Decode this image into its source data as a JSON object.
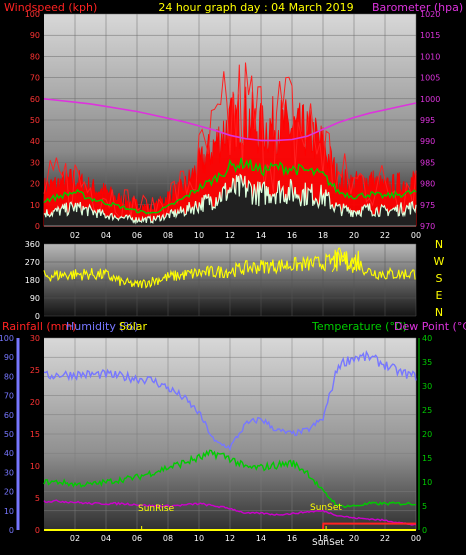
{
  "colors": {
    "background": "#000000",
    "windspeed": "#ff0000",
    "windspeed_avg": "#00cc00",
    "windspeed_low": "#ddffdd",
    "barometer": "#dd33dd",
    "direction": "#ffff00",
    "rainfall": "#ff2222",
    "humidity": "#7777ff",
    "solar": "#ffff00",
    "temperature": "#00cc00",
    "dewpoint": "#cc00cc",
    "sun_event": "#ffff00"
  },
  "chart_data": [
    {
      "type": "line",
      "title": "24 hour graph day : 04 March 2019",
      "x_ticks": [
        "02",
        "04",
        "06",
        "08",
        "10",
        "12",
        "14",
        "16",
        "18",
        "20",
        "22",
        "00"
      ],
      "x": [
        0,
        1,
        2,
        3,
        4,
        5,
        6,
        7,
        8,
        9,
        10,
        11,
        12,
        13,
        14,
        15,
        16,
        17,
        18,
        19,
        20,
        21,
        22,
        23,
        24
      ],
      "left_axis": {
        "label": "Windspeed (kph)",
        "ticks": [
          0,
          10,
          20,
          30,
          40,
          50,
          60,
          70,
          80,
          90,
          100
        ],
        "range": [
          0,
          100
        ]
      },
      "right_axis": {
        "label": "Barometer (hpa)",
        "ticks": [
          970,
          975,
          980,
          985,
          990,
          995,
          1000,
          1005,
          1010,
          1015,
          1020
        ],
        "range": [
          970,
          1020
        ]
      },
      "series": [
        {
          "name": "Windspeed (kph)",
          "axis": "left",
          "kind": "gust",
          "values": [
            18,
            20,
            22,
            18,
            16,
            12,
            10,
            8,
            14,
            18,
            28,
            38,
            48,
            52,
            45,
            48,
            46,
            44,
            38,
            22,
            20,
            22,
            18,
            20,
            22
          ]
        },
        {
          "name": "",
          "axis": "left",
          "kind": "average",
          "values": [
            12,
            14,
            16,
            13,
            11,
            9,
            7,
            6,
            9,
            13,
            18,
            22,
            28,
            30,
            26,
            28,
            27,
            26,
            24,
            16,
            14,
            15,
            14,
            15,
            16
          ]
        },
        {
          "name": "",
          "axis": "left",
          "kind": "low",
          "values": [
            6,
            7,
            9,
            7,
            5,
            4,
            3,
            3,
            5,
            7,
            10,
            13,
            17,
            18,
            15,
            17,
            16,
            15,
            14,
            8,
            7,
            8,
            7,
            8,
            9
          ]
        },
        {
          "name": "Barometer (hpa)",
          "axis": "right",
          "kind": "pressure",
          "values": [
            1000,
            999.6,
            999.2,
            998.8,
            998.2,
            997.6,
            997,
            996.2,
            995.4,
            994.6,
            993.6,
            992.6,
            991.4,
            990.6,
            990.2,
            990.2,
            990.4,
            991.2,
            992.8,
            994.4,
            995.6,
            996.6,
            997.4,
            998.2,
            999
          ]
        }
      ]
    },
    {
      "type": "line",
      "title": "",
      "x": [
        0,
        1,
        2,
        3,
        4,
        5,
        6,
        7,
        8,
        9,
        10,
        11,
        12,
        13,
        14,
        15,
        16,
        17,
        18,
        19,
        20,
        21,
        22,
        23,
        24
      ],
      "left_axis": {
        "label": "",
        "ticks": [
          0,
          90,
          180,
          270,
          360
        ],
        "range": [
          0,
          360
        ]
      },
      "compass_labels": [
        "N",
        "W",
        "S",
        "E",
        "N"
      ],
      "series": [
        {
          "name": "",
          "values": [
            200,
            205,
            208,
            210,
            205,
            170,
            155,
            175,
            195,
            205,
            215,
            220,
            225,
            240,
            248,
            252,
            255,
            258,
            265,
            280,
            275,
            222,
            210,
            210,
            212
          ]
        }
      ]
    },
    {
      "type": "line",
      "title": "",
      "x_ticks": [
        "02",
        "04",
        "06",
        "08",
        "10",
        "12",
        "14",
        "16",
        "18",
        "20",
        "22",
        "00"
      ],
      "x": [
        0,
        1,
        2,
        3,
        4,
        5,
        6,
        7,
        8,
        9,
        10,
        11,
        12,
        13,
        14,
        15,
        16,
        17,
        18,
        19,
        20,
        21,
        22,
        23,
        24
      ],
      "legend_left": [
        "Rainfall (mm)",
        "Humidity (%)",
        "Solar"
      ],
      "legend_right": [
        "Temperature (°C)",
        "Dew Point (°C)"
      ],
      "humidity_axis": {
        "ticks": [
          0,
          10,
          20,
          30,
          40,
          50,
          60,
          70,
          80,
          90,
          100
        ],
        "range": [
          0,
          100
        ]
      },
      "rain_axis": {
        "ticks": [
          0,
          5,
          10,
          15,
          20,
          25,
          30
        ],
        "range": [
          0,
          30
        ]
      },
      "temp_axis": {
        "ticks": [
          0,
          5,
          10,
          15,
          20,
          25,
          30,
          35,
          40
        ],
        "range": [
          0,
          40
        ]
      },
      "annotations": {
        "sunrise": "SunRise",
        "sunset": "SunSet",
        "sunset_bottom": "SunSet"
      },
      "series": [
        {
          "name": "Humidity (%)",
          "axis": "humidity",
          "values": [
            80,
            81,
            81,
            81,
            81,
            80,
            79,
            78,
            74,
            69,
            61,
            46,
            43,
            55,
            58,
            52,
            50,
            52,
            58,
            86,
            90,
            90,
            86,
            82,
            80
          ]
        },
        {
          "name": "Temperature (°C)",
          "axis": "temp",
          "values": [
            10,
            10,
            9.5,
            9.5,
            10,
            10.5,
            11,
            12,
            13,
            14,
            15,
            16,
            15,
            13,
            13,
            13.5,
            14,
            12,
            8,
            5,
            5,
            5.5,
            5.5,
            5.5,
            5.5
          ]
        },
        {
          "name": "Dew Point (°C)",
          "axis": "temp",
          "values": [
            6,
            6,
            5.8,
            5.5,
            5.5,
            5.5,
            5.3,
            5,
            5,
            5.2,
            5.5,
            5,
            4.5,
            3.5,
            3.5,
            3.2,
            3.4,
            3.8,
            4,
            3,
            2.5,
            2.3,
            2,
            1.5,
            1
          ]
        },
        {
          "name": "Rainfall (mm)",
          "axis": "rain",
          "values": [
            0,
            0,
            0,
            0,
            0,
            0,
            0,
            0,
            0,
            0,
            0,
            0,
            0,
            0,
            0,
            0,
            0,
            0,
            0,
            1,
            1,
            1,
            1,
            1,
            1
          ]
        },
        {
          "name": "Solar",
          "axis": "humidity",
          "values": [
            0,
            0,
            0,
            0,
            0,
            0,
            0,
            0,
            0,
            0,
            0,
            0,
            0,
            0,
            0,
            0,
            0,
            0,
            0,
            0,
            0,
            0,
            0,
            0,
            0
          ]
        }
      ]
    }
  ]
}
